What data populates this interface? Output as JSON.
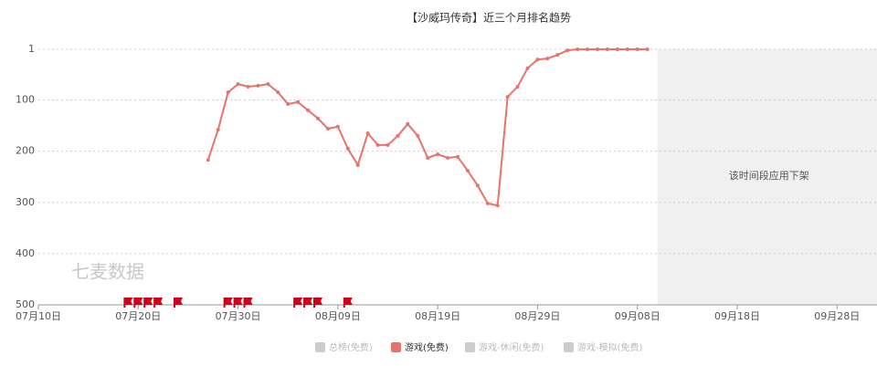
{
  "chart_data": {
    "type": "line",
    "title": "【沙威玛传奇】近三个月排名趋势",
    "x": [
      "07月27日",
      "07月28日",
      "07月29日",
      "07月30日",
      "07月31日",
      "08月01日",
      "08月02日",
      "08月03日",
      "08月04日",
      "08月05日",
      "08月06日",
      "08月07日",
      "08月08日",
      "08月09日",
      "08月10日",
      "08月11日",
      "08月12日",
      "08月13日",
      "08月14日",
      "08月15日",
      "08月16日",
      "08月17日",
      "08月18日",
      "08月19日",
      "08月20日",
      "08月21日",
      "08月22日",
      "08月23日",
      "08月24日",
      "08月25日",
      "08月26日",
      "08月27日",
      "08月28日",
      "08月29日",
      "08月30日",
      "08月31日",
      "09月01日",
      "09月02日",
      "09月03日",
      "09月04日",
      "09月05日",
      "09月06日",
      "09月07日",
      "09月08日",
      "09月09日"
    ],
    "series": [
      {
        "name": "总榜(免费)",
        "color": "#cccccc",
        "visible": false,
        "values": [
          null,
          null,
          null,
          null,
          null,
          null,
          null,
          null,
          null,
          null,
          null,
          null,
          null,
          null,
          null,
          null,
          null,
          null,
          null,
          null,
          null,
          null,
          null,
          null,
          null,
          null,
          null,
          null,
          null,
          null,
          null,
          null,
          null,
          null,
          null,
          null,
          null,
          null,
          null,
          null,
          null,
          null,
          null,
          null,
          null
        ]
      },
      {
        "name": "游戏(免费)",
        "color": "#e8736b",
        "visible": true,
        "values": [
          217,
          158,
          85,
          69,
          74,
          72,
          69,
          85,
          108,
          104,
          120,
          136,
          156,
          152,
          195,
          227,
          165,
          188,
          188,
          170,
          147,
          170,
          213,
          206,
          213,
          211,
          238,
          267,
          302,
          306,
          94,
          74,
          38,
          21,
          19,
          12,
          3,
          1,
          1,
          1,
          1,
          1,
          1,
          1,
          1
        ]
      },
      {
        "name": "游戏-休闲(免费)",
        "color": "#cccccc",
        "visible": false,
        "values": [
          null,
          null,
          null,
          null,
          null,
          null,
          null,
          null,
          null,
          null,
          null,
          null,
          null,
          null,
          null,
          null,
          null,
          null,
          null,
          null,
          null,
          null,
          null,
          null,
          null,
          null,
          null,
          null,
          null,
          null,
          null,
          null,
          null,
          null,
          null,
          null,
          null,
          null,
          null,
          null,
          null,
          null,
          null,
          null,
          null
        ]
      },
      {
        "name": "游戏-模拟(免费)",
        "color": "#cccccc",
        "visible": false,
        "values": [
          null,
          null,
          null,
          null,
          null,
          null,
          null,
          null,
          null,
          null,
          null,
          null,
          null,
          null,
          null,
          null,
          null,
          null,
          null,
          null,
          null,
          null,
          null,
          null,
          null,
          null,
          null,
          null,
          null,
          null,
          null,
          null,
          null,
          null,
          null,
          null,
          null,
          null,
          null,
          null,
          null,
          null,
          null,
          null,
          null
        ]
      }
    ],
    "xlim": [
      "07月10日",
      "10月02日"
    ],
    "xticks": [
      "07月10日",
      "07月20日",
      "07月30日",
      "08月09日",
      "08月19日",
      "08月29日",
      "09月08日",
      "09月18日",
      "09月28日"
    ],
    "ylim": [
      1,
      500
    ],
    "y_inverted": true,
    "yticks": [
      1,
      100,
      200,
      300,
      400,
      500
    ],
    "grid": true,
    "flags": [
      "07月19日",
      "07月20日",
      "07月21日",
      "07月22日",
      "07月24日",
      "07月29日",
      "07月30日",
      "07月31日",
      "08月05日",
      "08月06日",
      "08月07日",
      "08月10日"
    ],
    "flag_color": "#d0021b",
    "shaded": {
      "from": "09月10日",
      "text": "该时间段应用下架",
      "color": "#f0f0f0"
    },
    "watermark": "七麦数据"
  }
}
